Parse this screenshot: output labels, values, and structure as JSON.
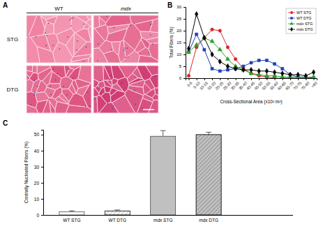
{
  "figure": {
    "title": "A",
    "columns": [
      "WT",
      "mdx"
    ],
    "rows": [
      "STG",
      "DTG"
    ]
  },
  "chart_data": [
    {
      "type": "line",
      "title": "B",
      "x_label": "Cross-Sectional Area (x10² m²)",
      "y_label": "Total Fibers (%)",
      "categories": [
        "0-5",
        "5-10",
        "10-15",
        "15-20",
        "20-25",
        "25-30",
        "30-35",
        "35-40",
        "40-45",
        "45-50",
        "50-55",
        "55-60",
        "60-65",
        "65-70",
        "70-75",
        "75-80",
        ">80"
      ],
      "series": [
        {
          "name": "WT STG",
          "color": "#d62728",
          "marker": "circle",
          "values": [
            1,
            13,
            17,
            20.5,
            20,
            13,
            8,
            4,
            2,
            1,
            0.5,
            0,
            0,
            0,
            0,
            0,
            0
          ]
        },
        {
          "name": "WT DTG",
          "color": "#1f3fbf",
          "marker": "square",
          "values": [
            11,
            18.5,
            12,
            4,
            3,
            3.5,
            4,
            5,
            6.5,
            7.5,
            7.5,
            6,
            4,
            1.5,
            0.5,
            0.5,
            0
          ]
        },
        {
          "name": "mdx STG",
          "color": "#2ca02c",
          "marker": "triangle",
          "values": [
            11,
            14,
            17,
            15.5,
            12,
            8,
            5,
            3.5,
            2,
            1.5,
            1,
            1,
            0.5,
            0.5,
            0.3,
            0.3,
            0.5
          ]
        },
        {
          "name": "mdx DTG",
          "color": "#000000",
          "marker": "diamond",
          "values": [
            12.5,
            27,
            17,
            10,
            7,
            5,
            4,
            3.5,
            3.5,
            3,
            3,
            2.5,
            2,
            1.5,
            1.5,
            1,
            2.5
          ]
        }
      ],
      "ylim": [
        0,
        30
      ],
      "yticks": [
        0,
        5,
        10,
        15,
        20,
        25,
        30
      ],
      "legend": "upper right"
    },
    {
      "type": "bar",
      "title": "C",
      "y_label": "Centrally Nucleated Fibers (%)",
      "categories": [
        "WT STG",
        "WT DTG",
        "mdx STG",
        "mdx DTG"
      ],
      "values": [
        2,
        2.5,
        49,
        50
      ],
      "errors": [
        0.6,
        0.6,
        3.5,
        1.5
      ],
      "colors": [
        "#ffffff",
        "#ffffff",
        "#c0c0c0",
        "#c0c0c0"
      ],
      "ylim": [
        0,
        53
      ],
      "yticks": [
        0,
        10,
        20,
        30,
        40,
        50
      ]
    }
  ]
}
